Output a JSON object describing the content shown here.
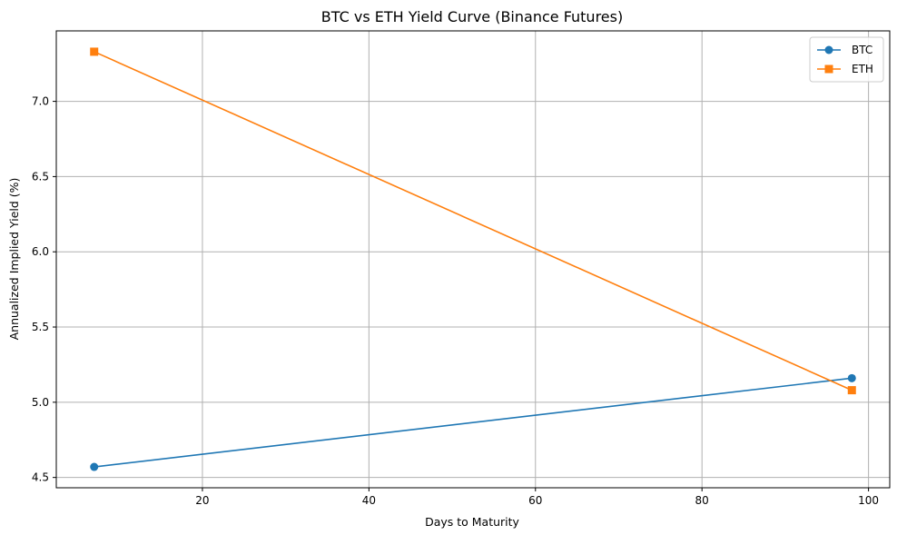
{
  "chart_data": {
    "type": "line",
    "title": "BTC vs ETH Yield Curve (Binance Futures)",
    "xlabel": "Days to Maturity",
    "ylabel": "Annualized Implied Yield (%)",
    "xlim": [
      2.45,
      102.55
    ],
    "ylim": [
      4.4315,
      7.4685
    ],
    "xticks": [
      20,
      40,
      60,
      80,
      100
    ],
    "yticks": [
      4.5,
      5.0,
      5.5,
      6.0,
      6.5,
      7.0
    ],
    "xtick_labels": [
      "20",
      "40",
      "60",
      "80",
      "100"
    ],
    "ytick_labels": [
      "4.5",
      "5.0",
      "5.5",
      "6.0",
      "6.5",
      "7.0"
    ],
    "grid": true,
    "legend_position": "top-right",
    "series": [
      {
        "name": "BTC",
        "marker": "circle",
        "color": "#1f77b4",
        "x": [
          7,
          98
        ],
        "y": [
          4.57,
          5.16
        ]
      },
      {
        "name": "ETH",
        "marker": "square",
        "color": "#ff7f0e",
        "x": [
          7,
          98
        ],
        "y": [
          7.33,
          5.08
        ]
      }
    ]
  }
}
